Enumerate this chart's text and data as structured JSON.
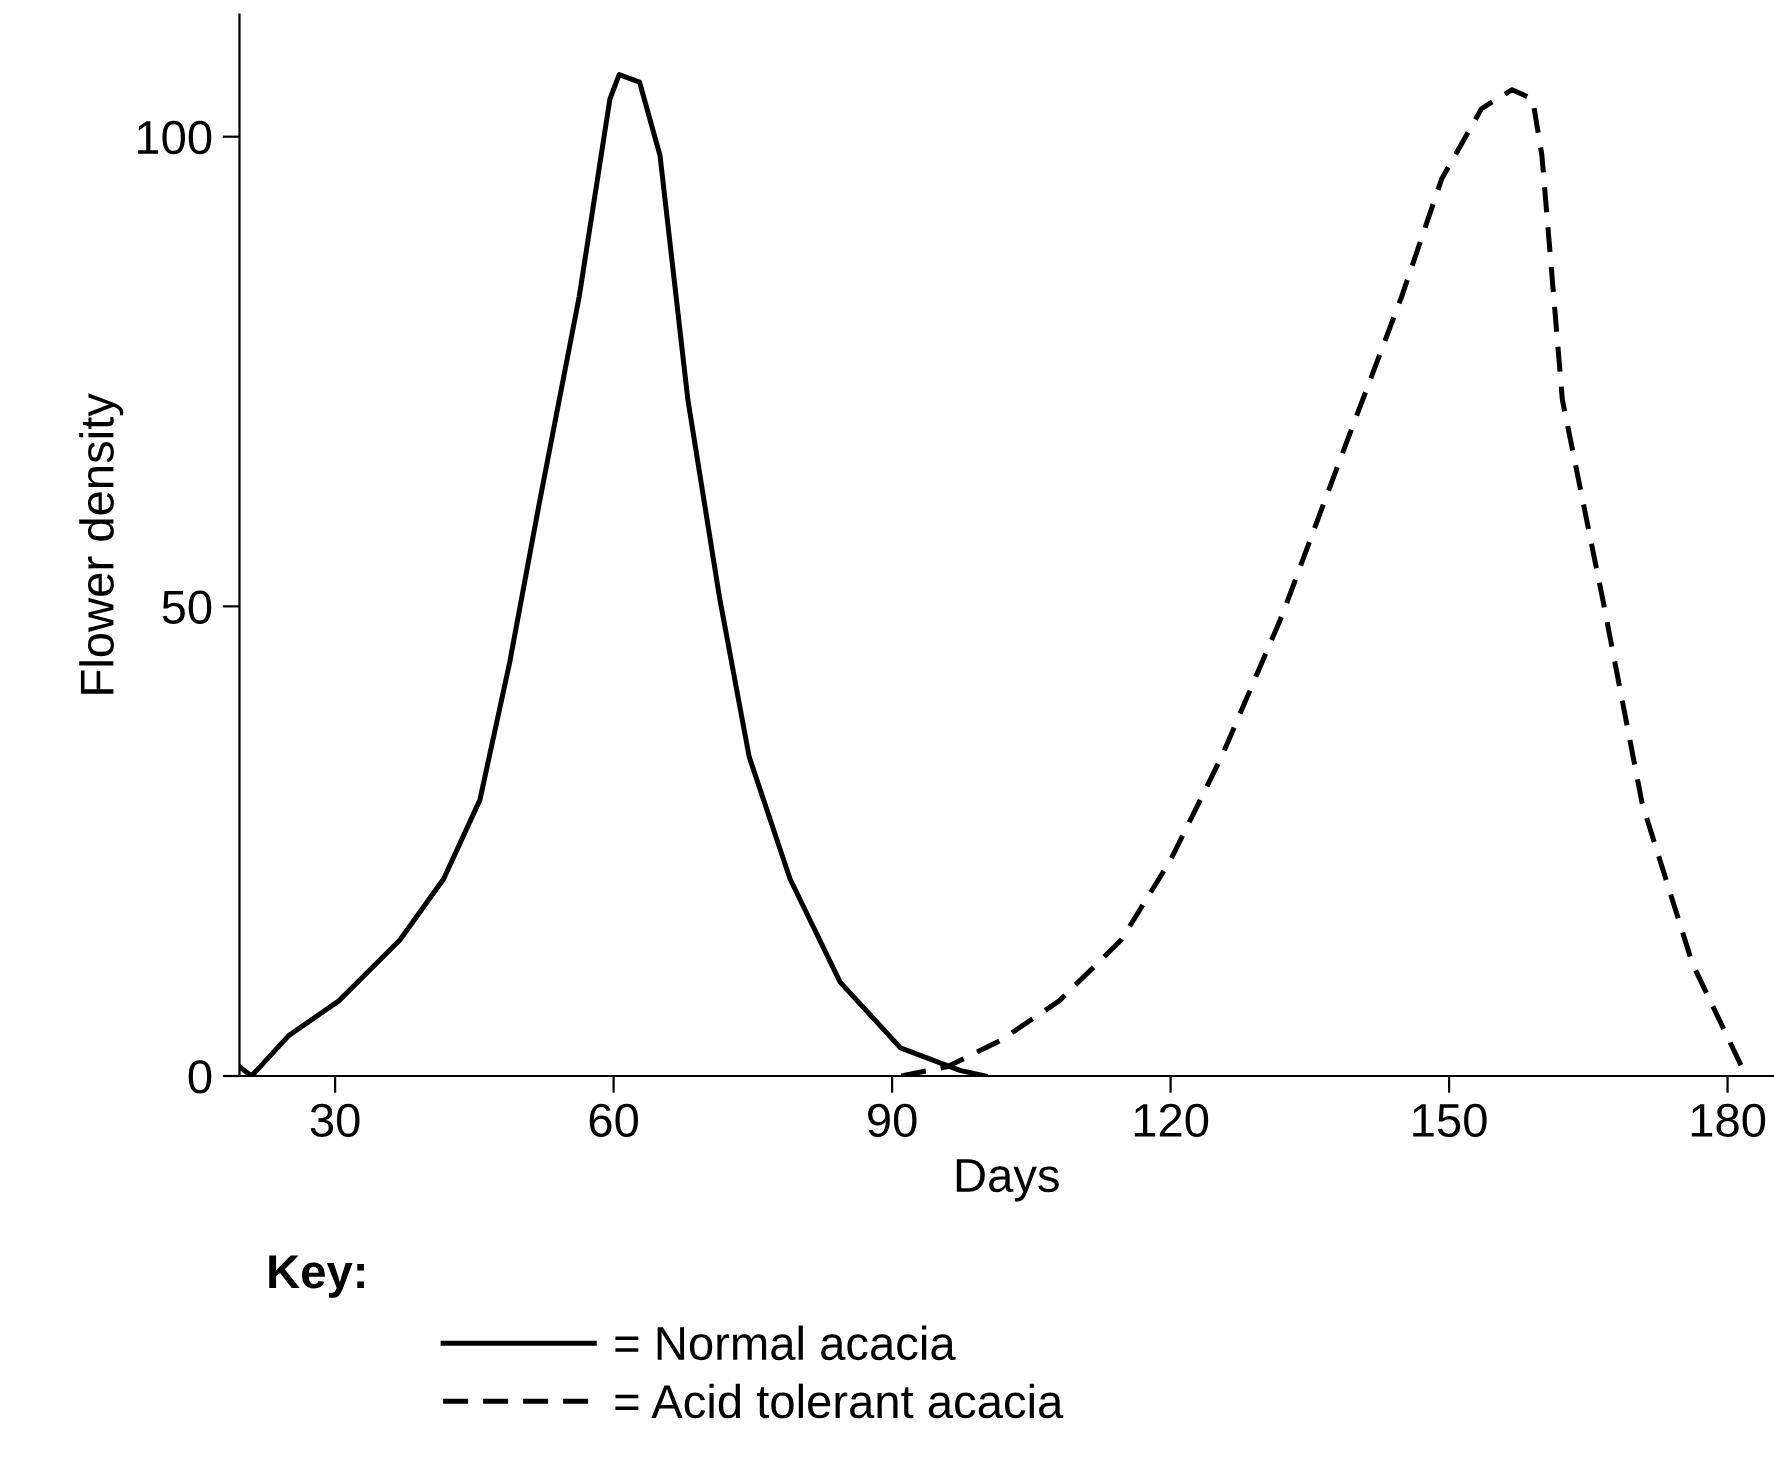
{
  "chart_data": {
    "type": "line",
    "xlabel": "Days",
    "ylabel": "Flower density",
    "legend_title": "Key:",
    "legend": "bottom",
    "xlim": [
      19.7,
      185
    ],
    "ylim": [
      0,
      113
    ],
    "xticks": [
      30,
      60,
      90,
      120,
      150,
      180
    ],
    "yticks": [
      0,
      50,
      100
    ],
    "grid": false,
    "series": [
      {
        "name": "= Normal acacia",
        "color": "#000000",
        "line_style": "solid",
        "x": [
          19.7,
          21,
          25,
          30.4,
          37,
          41.7,
          45.6,
          48.8,
          52,
          56.3,
          59.6,
          60.6,
          62.8,
          65,
          68,
          71.4,
          74.6,
          79,
          84.4,
          90.9,
          97.3,
          100
        ],
        "values": [
          1,
          0,
          4.3,
          8,
          14.5,
          21,
          29.4,
          44,
          61,
          83,
          104,
          106.6,
          105.8,
          98,
          72,
          51,
          34,
          21,
          10,
          3,
          0.6,
          0
        ]
      },
      {
        "name": "= Acid tolerant acacia",
        "color": "#000000",
        "line_style": "dashed",
        "x": [
          91,
          96,
          101.7,
          108,
          114.7,
          120,
          125.5,
          132,
          138.4,
          144.9,
          149.2,
          153.5,
          156.8,
          159,
          160,
          162.2,
          166.5,
          170.8,
          176.2,
          182
        ],
        "values": [
          0,
          1,
          3.8,
          8,
          14.5,
          23,
          34,
          49,
          66,
          83,
          95.5,
          103,
          105,
          104,
          98,
          72,
          51,
          29,
          12,
          0
        ]
      }
    ]
  }
}
